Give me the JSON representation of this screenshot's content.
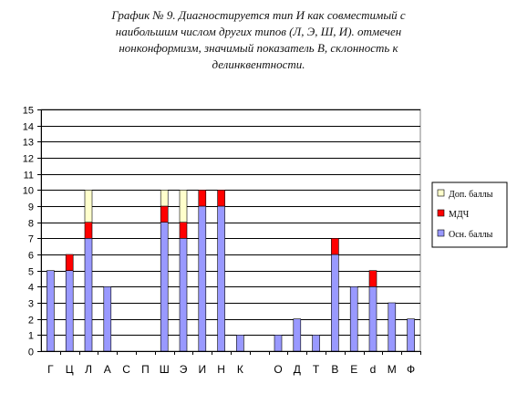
{
  "chart_data": {
    "type": "bar",
    "stacked": true,
    "title_lines": [
      "График № 9. Диагностируется тип  И  как  совместимый с",
      "наибольшим числом других типов (Л, Э, Ш, И). отмечен",
      "нонконформизм, значимый показатель В, склонность к",
      "делинквентности."
    ],
    "categories": [
      "Г",
      "Ц",
      "Л",
      "А",
      "С",
      "П",
      "Ш",
      "Э",
      "И",
      "Н",
      "К",
      "",
      "О",
      "Д",
      "Т",
      "В",
      "Е",
      "d",
      "М",
      "Ф"
    ],
    "series": [
      {
        "name": "Осн. баллы",
        "color": "#9999ff",
        "values": [
          5,
          5,
          7,
          4,
          0,
          0,
          8,
          7,
          9,
          9,
          1,
          0,
          1,
          2,
          1,
          6,
          4,
          4,
          3,
          2
        ]
      },
      {
        "name": "МДЧ",
        "color": "#ff0000",
        "values": [
          0,
          1,
          1,
          0,
          0,
          0,
          1,
          1,
          1,
          1,
          0,
          0,
          0,
          0,
          0,
          1,
          0,
          1,
          0,
          0
        ]
      },
      {
        "name": "Доп. баллы",
        "color": "#ffffcc",
        "values": [
          0,
          0,
          2,
          0,
          0,
          0,
          1,
          2,
          0,
          0,
          0,
          0,
          0,
          0,
          0,
          0,
          0,
          0,
          0,
          0
        ]
      }
    ],
    "legend_order": [
      "Доп. баллы",
      "МДЧ",
      "Осн. баллы"
    ],
    "legend_position": "right",
    "ylim": [
      0,
      15
    ],
    "yticks": [
      "0",
      "1",
      "2",
      "3",
      "4",
      "5",
      "6",
      "7",
      "8",
      "9",
      "10",
      "11",
      "12",
      "13",
      "14",
      "15"
    ],
    "grid": true
  }
}
